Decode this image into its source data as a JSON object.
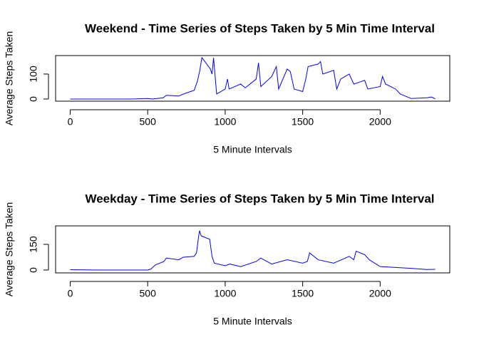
{
  "chart_data": [
    {
      "type": "line",
      "title": "Weekend - Time Series of Steps Taken by 5 Min Time Interval",
      "x_label": "5 Minute Intervals",
      "y_label": "Average Steps Taken",
      "x": [
        0,
        200,
        400,
        500,
        530,
        600,
        620,
        700,
        730,
        800,
        820,
        835,
        850,
        905,
        915,
        925,
        945,
        1000,
        1015,
        1025,
        1100,
        1130,
        1200,
        1215,
        1230,
        1300,
        1330,
        1345,
        1400,
        1420,
        1445,
        1500,
        1520,
        1535,
        1600,
        1615,
        1630,
        1700,
        1720,
        1745,
        1800,
        1830,
        1900,
        1920,
        2000,
        2015,
        2035,
        2100,
        2130,
        2200,
        2300,
        2330,
        2355
      ],
      "series": [
        {
          "color": "#0000ff",
          "values": [
            0,
            0,
            0,
            2,
            0,
            5,
            15,
            12,
            20,
            35,
            70,
            110,
            166,
            120,
            100,
            165,
            20,
            40,
            80,
            40,
            60,
            45,
            80,
            145,
            50,
            90,
            130,
            40,
            120,
            110,
            40,
            30,
            80,
            130,
            140,
            150,
            100,
            115,
            40,
            80,
            100,
            60,
            75,
            40,
            50,
            90,
            60,
            40,
            20,
            2,
            5,
            8,
            1
          ]
        }
      ],
      "xlim": [
        -94.2,
        2449.2
      ],
      "xticks": [
        0,
        500,
        1000,
        1500,
        2000
      ],
      "ylim": [
        -8.6,
        174
      ],
      "yticks": [
        0,
        100
      ]
    },
    {
      "type": "line",
      "title": "Weekday - Time Series of Steps Taken by 5 Min Time Interval",
      "x_label": "5 Minute Intervals",
      "y_label": "Average Steps Taken",
      "x": [
        0,
        200,
        400,
        500,
        520,
        550,
        605,
        620,
        700,
        730,
        800,
        815,
        830,
        835,
        845,
        900,
        915,
        930,
        1000,
        1030,
        1100,
        1200,
        1230,
        1300,
        1400,
        1500,
        1530,
        1545,
        1600,
        1700,
        1800,
        1830,
        1845,
        1900,
        1930,
        2000,
        2100,
        2200,
        2300,
        2355
      ],
      "series": [
        {
          "color": "#0000ff",
          "values": [
            2,
            0,
            0,
            0,
            5,
            30,
            50,
            70,
            60,
            75,
            80,
            100,
            205,
            230,
            200,
            180,
            80,
            40,
            25,
            35,
            20,
            50,
            70,
            35,
            60,
            40,
            50,
            100,
            60,
            40,
            80,
            60,
            110,
            90,
            60,
            20,
            15,
            10,
            3,
            4
          ]
        }
      ],
      "xlim": [
        -94.2,
        2449.2
      ],
      "xticks": [
        0,
        500,
        1000,
        1500,
        2000
      ],
      "ylim": [
        -16.7,
        258
      ],
      "yticks": [
        0,
        150
      ]
    }
  ]
}
